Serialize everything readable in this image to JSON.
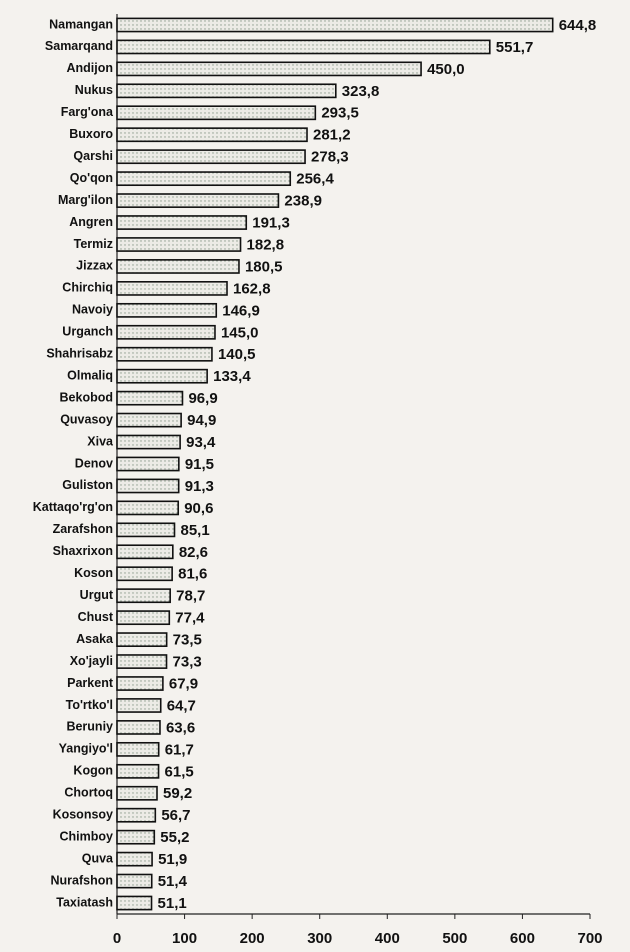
{
  "chart_data": {
    "type": "bar",
    "orientation": "horizontal",
    "categories": [
      "Namangan",
      "Samarqand",
      "Andijon",
      "Nukus",
      "Farg'ona",
      "Buxoro",
      "Qarshi",
      "Qo'qon",
      "Marg'ilon",
      "Angren",
      "Termiz",
      "Jizzax",
      "Chirchiq",
      "Navoiy",
      "Urganch",
      "Shahrisabz",
      "Olmaliq",
      "Bekobod",
      "Quvasoy",
      "Xiva",
      "Denov",
      "Guliston",
      "Kattaqo'rg'on",
      "Zarafshon",
      "Shaxrixon",
      "Koson",
      "Urgut",
      "Chust",
      "Asaka",
      "Xo'jayli",
      "Parkent",
      "To'rtko'l",
      "Beruniy",
      "Yangiyo'l",
      "Kogon",
      "Chortoq",
      "Kosonsoy",
      "Chimboy",
      "Quva",
      "Nurafshon",
      "Taxiatash"
    ],
    "values": [
      644.8,
      551.7,
      450.0,
      323.8,
      293.5,
      281.2,
      278.3,
      256.4,
      238.9,
      191.3,
      182.8,
      180.5,
      162.8,
      146.9,
      145.0,
      140.5,
      133.4,
      96.9,
      94.9,
      93.4,
      91.5,
      91.3,
      90.6,
      85.1,
      82.6,
      81.6,
      78.7,
      77.4,
      73.5,
      73.3,
      67.9,
      64.7,
      63.6,
      61.7,
      61.5,
      59.2,
      56.7,
      55.2,
      51.9,
      51.4,
      51.1
    ],
    "value_labels": [
      "644,8",
      "551,7",
      "450,0",
      "323,8",
      "293,5",
      "281,2",
      "278,3",
      "256,4",
      "238,9",
      "191,3",
      "182,8",
      "180,5",
      "162,8",
      "146,9",
      "145,0",
      "140,5",
      "133,4",
      "96,9",
      "94,9",
      "93,4",
      "91,5",
      "91,3",
      "90,6",
      "85,1",
      "82,6",
      "81,6",
      "78,7",
      "77,4",
      "73,5",
      "73,3",
      "67,9",
      "64,7",
      "63,6",
      "61,7",
      "61,5",
      "59,2",
      "56,7",
      "55,2",
      "51,9",
      "51,4",
      "51,1"
    ],
    "color": "#e2e2dc",
    "xlim": [
      0,
      700
    ],
    "xticks": [
      0,
      100,
      200,
      300,
      400,
      500,
      600,
      700
    ],
    "grid": false
  }
}
